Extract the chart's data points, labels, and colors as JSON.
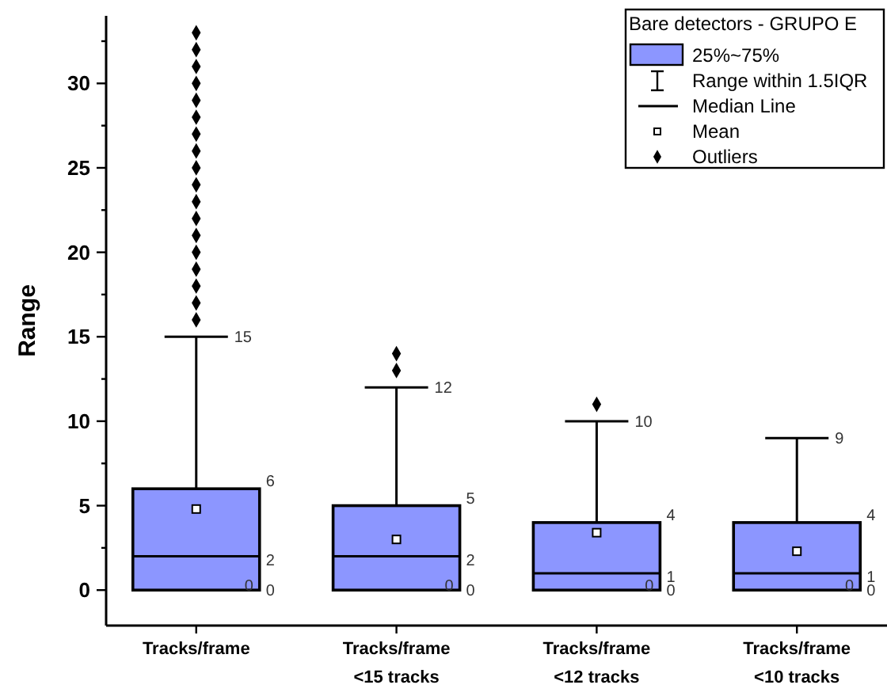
{
  "chart_data": {
    "type": "box",
    "ylabel": "Range",
    "legend_title": "Bare detectors - GRUPO E",
    "color": "#8c96ff",
    "categories": [
      "Tracks/frame",
      "Tracks/frame <15 tracks",
      "Tracks/frame <12 tracks",
      "Tracks/frame <10 tracks"
    ],
    "boxes": [
      {
        "low": 0,
        "q1": 0,
        "median": 2,
        "q3": 6,
        "high": 15,
        "mean": 4.8,
        "outliers": [
          16,
          17,
          18,
          19,
          20,
          21,
          22,
          23,
          24,
          25,
          26,
          27,
          28,
          29,
          30,
          31,
          32,
          33
        ]
      },
      {
        "low": 0,
        "q1": 0,
        "median": 2,
        "q3": 5,
        "high": 12,
        "mean": 3.0,
        "outliers": [
          13,
          14
        ]
      },
      {
        "low": 0,
        "q1": 0,
        "median": 1,
        "q3": 4,
        "high": 10,
        "mean": 3.4,
        "outliers": [
          11
        ]
      },
      {
        "low": 0,
        "q1": 0,
        "median": 1,
        "q3": 4,
        "high": 9,
        "mean": 2.3
      }
    ],
    "annotations": [
      "25%~75%",
      "Range within 1.5IQR",
      "Median Line",
      "Mean",
      "Outliers",
      "15",
      "6",
      "2",
      "0",
      "0",
      "12",
      "5",
      "2",
      "0",
      "0",
      "10",
      "4",
      "1",
      "0",
      "0",
      "9",
      "4",
      "1",
      "0",
      "0"
    ],
    "ylim": [
      -2.1,
      34
    ],
    "yticks": [
      0,
      {
        "value": 2.5,
        "label": null
      },
      5,
      {
        "value": 7.5,
        "label": null
      },
      10,
      {
        "value": 12.5,
        "label": null
      },
      15,
      {
        "value": 17.5,
        "label": null
      },
      20,
      {
        "value": 22.5,
        "label": null
      },
      25,
      {
        "value": 27.5,
        "label": null
      },
      30,
      {
        "value": 32.5,
        "label": null
      }
    ]
  }
}
